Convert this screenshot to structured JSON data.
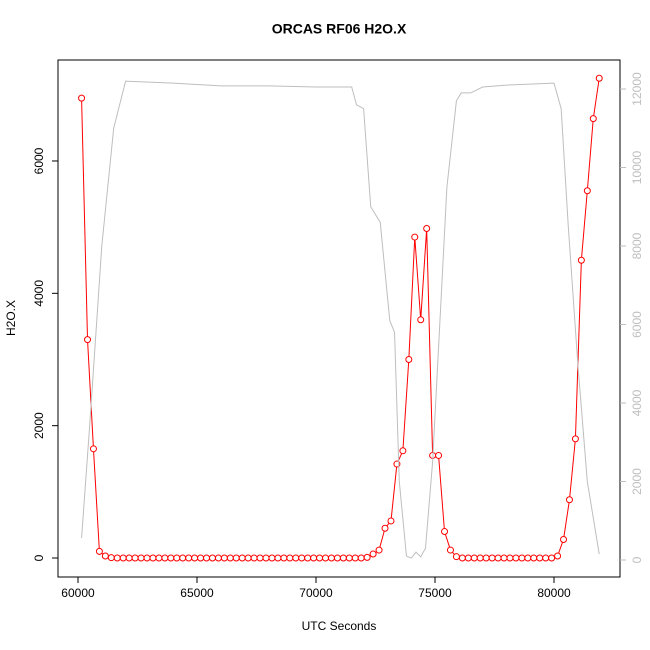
{
  "chart_data": {
    "type": "line",
    "title": "ORCAS RF06 H2O.X",
    "xlabel": "UTC Seconds",
    "ylabel": "H2O.X",
    "xlim": [
      59160,
      82773
    ],
    "ylim": [
      -287,
      7526
    ],
    "y2lim": [
      -433,
      12739
    ],
    "xticks": [
      60000,
      65000,
      70000,
      75000,
      80000
    ],
    "yticks": [
      0,
      2000,
      4000,
      6000
    ],
    "y2ticks": [
      0,
      2000,
      4000,
      6000,
      8000,
      10000,
      12000
    ],
    "series": [
      {
        "color": "#ff0000",
        "marker": "circle",
        "x": [
          60150,
          60400,
          60650,
          60900,
          61150,
          61400,
          61650,
          61900,
          62150,
          62400,
          62650,
          62900,
          63150,
          63400,
          63650,
          63900,
          64150,
          64400,
          64650,
          64900,
          65150,
          65400,
          65650,
          65900,
          66150,
          66400,
          66650,
          66900,
          67150,
          67400,
          67650,
          67900,
          68150,
          68400,
          68650,
          68900,
          69150,
          69400,
          69650,
          69900,
          70150,
          70400,
          70650,
          70900,
          71150,
          71400,
          71650,
          71900,
          72150,
          72400,
          72650,
          72900,
          73150,
          73400,
          73650,
          73900,
          74150,
          74400,
          74650,
          74900,
          75150,
          75400,
          75650,
          75900,
          76150,
          76400,
          76650,
          76900,
          77150,
          77400,
          77650,
          77900,
          78150,
          78400,
          78650,
          78900,
          79150,
          79400,
          79650,
          79900,
          80150,
          80400,
          80650,
          80900,
          81150,
          81400,
          81650,
          81900
        ],
        "values": [
          6950,
          3300,
          1650,
          100,
          30,
          5,
          0,
          0,
          0,
          0,
          0,
          0,
          0,
          0,
          0,
          0,
          0,
          0,
          0,
          0,
          0,
          0,
          0,
          0,
          0,
          0,
          0,
          0,
          0,
          0,
          0,
          0,
          0,
          0,
          0,
          0,
          0,
          0,
          0,
          0,
          0,
          0,
          0,
          0,
          0,
          0,
          0,
          0,
          10,
          60,
          120,
          450,
          560,
          1420,
          1620,
          3000,
          4850,
          3600,
          4980,
          1550,
          1550,
          400,
          120,
          20,
          0,
          0,
          0,
          0,
          0,
          0,
          0,
          0,
          0,
          0,
          0,
          0,
          0,
          0,
          0,
          0,
          30,
          280,
          880,
          1800,
          4500,
          5550,
          6640,
          7250
        ]
      },
      {
        "color": "#bebebe",
        "axis": "y2",
        "x": [
          60150,
          60500,
          61000,
          61500,
          62000,
          64000,
          66000,
          68000,
          70000,
          71500,
          71700,
          72000,
          72300,
          72700,
          73100,
          73300,
          73500,
          73800,
          74000,
          74200,
          74400,
          74600,
          74900,
          75200,
          75500,
          75900,
          76100,
          76500,
          77000,
          78000,
          80000,
          80300,
          80600,
          81000,
          81400,
          81900
        ],
        "values": [
          560,
          3500,
          8000,
          11000,
          12200,
          12150,
          12080,
          12080,
          12050,
          12050,
          11600,
          11500,
          9000,
          8600,
          6100,
          5800,
          2000,
          100,
          50,
          200,
          80,
          300,
          2500,
          6000,
          9500,
          11700,
          11900,
          11900,
          12050,
          12100,
          12150,
          11500,
          8500,
          5000,
          2000,
          150
        ]
      }
    ]
  }
}
